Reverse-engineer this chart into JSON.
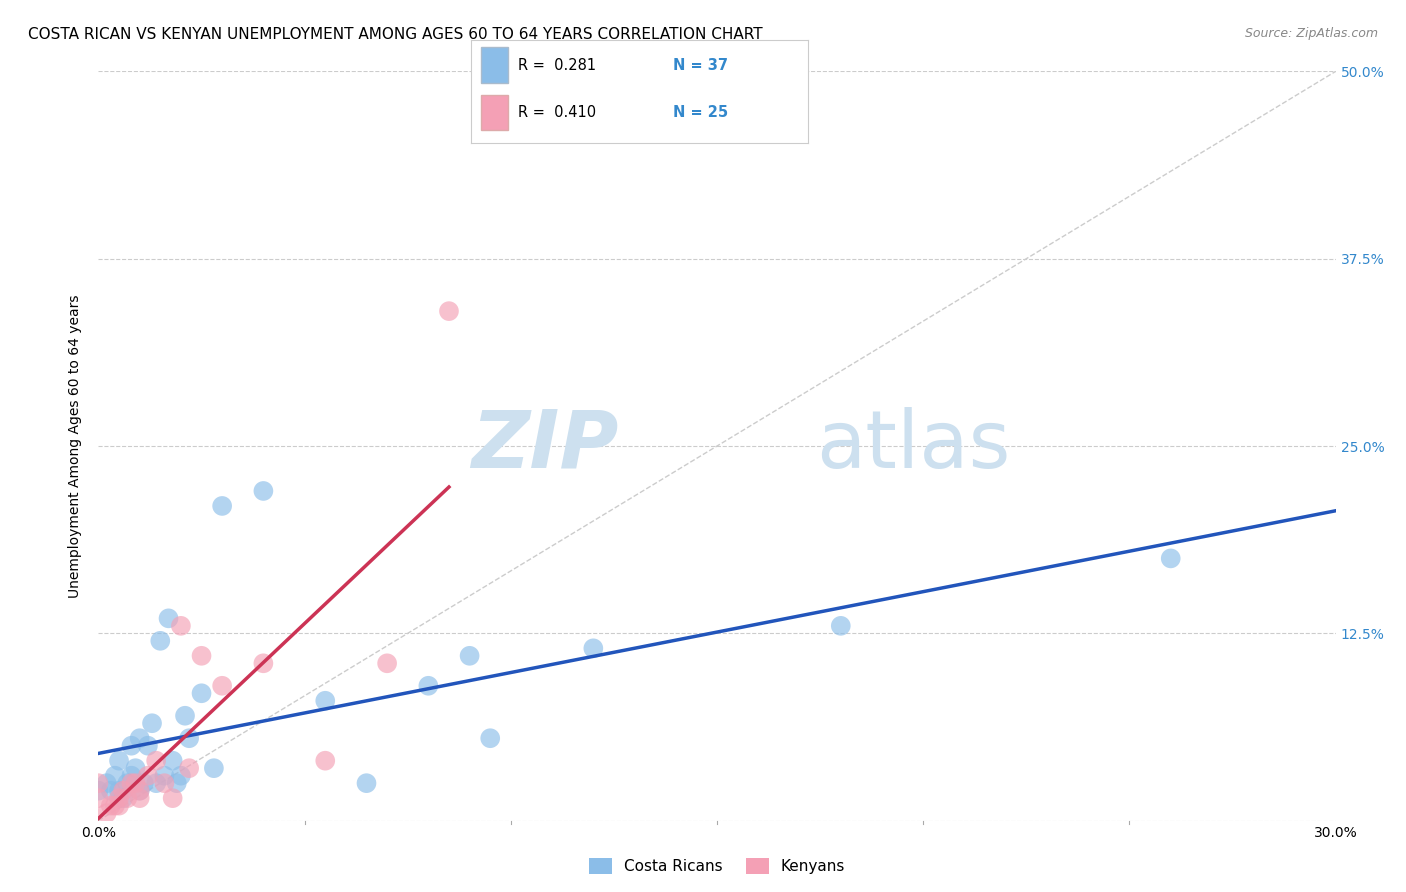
{
  "title": "COSTA RICAN VS KENYAN UNEMPLOYMENT AMONG AGES 60 TO 64 YEARS CORRELATION CHART",
  "source": "Source: ZipAtlas.com",
  "ylabel": "Unemployment Among Ages 60 to 64 years",
  "xlim": [
    0.0,
    0.3
  ],
  "ylim": [
    0.0,
    0.5
  ],
  "xticks": [
    0.0,
    0.05,
    0.1,
    0.15,
    0.2,
    0.25,
    0.3
  ],
  "xticklabels": [
    "0.0%",
    "",
    "",
    "",
    "",
    "",
    "30.0%"
  ],
  "yticks": [
    0.0,
    0.125,
    0.25,
    0.375,
    0.5
  ],
  "right_yticklabels": [
    "",
    "12.5%",
    "25.0%",
    "37.5%",
    "50.0%"
  ],
  "legend_r1": "R = 0.281",
  "legend_n1": "N = 37",
  "legend_r2": "R = 0.410",
  "legend_n2": "N = 25",
  "color_cr": "#8bbde8",
  "color_kn": "#f4a0b5",
  "line_color_cr": "#2255bb",
  "line_color_kn": "#cc3355",
  "diagonal_color": "#cccccc",
  "watermark_zip_color": "#cde0ef",
  "watermark_atlas_color": "#cde0ef",
  "grid_color": "#cccccc",
  "background_color": "#ffffff",
  "title_fontsize": 11,
  "label_fontsize": 10,
  "tick_fontsize": 10,
  "costa_rican_x": [
    0.0,
    0.002,
    0.003,
    0.004,
    0.005,
    0.005,
    0.006,
    0.007,
    0.008,
    0.008,
    0.009,
    0.01,
    0.01,
    0.011,
    0.012,
    0.013,
    0.014,
    0.015,
    0.016,
    0.017,
    0.018,
    0.019,
    0.02,
    0.021,
    0.022,
    0.025,
    0.028,
    0.03,
    0.04,
    0.055,
    0.065,
    0.08,
    0.09,
    0.095,
    0.12,
    0.18,
    0.26
  ],
  "costa_rican_y": [
    0.02,
    0.025,
    0.02,
    0.03,
    0.02,
    0.04,
    0.015,
    0.025,
    0.05,
    0.03,
    0.035,
    0.02,
    0.055,
    0.025,
    0.05,
    0.065,
    0.025,
    0.12,
    0.03,
    0.135,
    0.04,
    0.025,
    0.03,
    0.07,
    0.055,
    0.085,
    0.035,
    0.21,
    0.22,
    0.08,
    0.025,
    0.09,
    0.11,
    0.055,
    0.115,
    0.13,
    0.175
  ],
  "kenyan_x": [
    0.0,
    0.0,
    0.002,
    0.003,
    0.004,
    0.005,
    0.005,
    0.006,
    0.007,
    0.008,
    0.009,
    0.01,
    0.01,
    0.012,
    0.014,
    0.016,
    0.018,
    0.02,
    0.022,
    0.025,
    0.03,
    0.04,
    0.055,
    0.07,
    0.085
  ],
  "kenyan_y": [
    0.015,
    0.025,
    0.005,
    0.01,
    0.01,
    0.01,
    0.015,
    0.02,
    0.015,
    0.025,
    0.025,
    0.015,
    0.02,
    0.03,
    0.04,
    0.025,
    0.015,
    0.13,
    0.035,
    0.11,
    0.09,
    0.105,
    0.04,
    0.105,
    0.34
  ],
  "kenyan_line_xmax": 0.085
}
